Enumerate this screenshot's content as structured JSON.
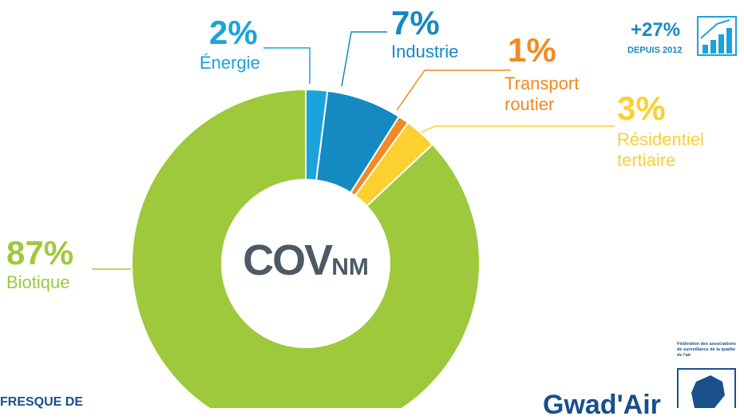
{
  "chart_data": {
    "type": "donut",
    "center_label": "COV",
    "center_sub": "NM",
    "categories": [
      "Énergie",
      "Industrie",
      "Transport routier",
      "Résidentiel tertiaire",
      "Biotique"
    ],
    "values": [
      2,
      7,
      1,
      3,
      87
    ],
    "value_labels": [
      "2%",
      "7%",
      "1%",
      "3%",
      "87%"
    ],
    "colors": [
      "#1ba3dc",
      "#1589c2",
      "#f08a24",
      "#fcd02f",
      "#9ec93c"
    ]
  },
  "badge": {
    "value": "+27%",
    "caption": "DEPUIS 2012"
  },
  "footer": {
    "left": "FRESQUE DE",
    "logo": "Gwad'Air",
    "federation": "Fédération des associations de surveillance de la qualité de l'air"
  }
}
